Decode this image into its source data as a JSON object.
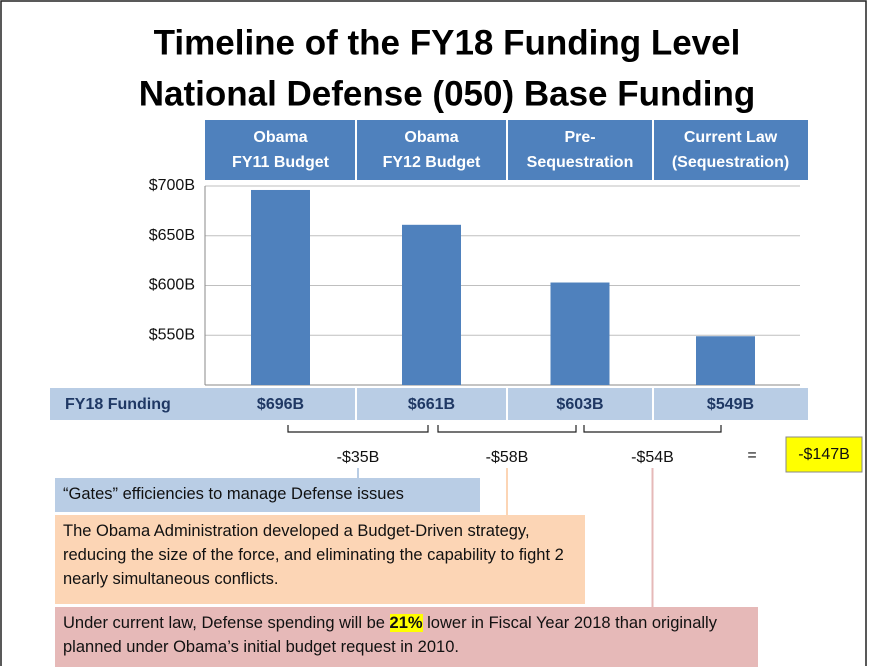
{
  "title": [
    "Timeline of the FY18 Funding Level",
    "National Defense (050) Base Funding"
  ],
  "chart_data": {
    "type": "bar",
    "categories": [
      [
        "Obama",
        "FY11 Budget"
      ],
      [
        "Obama",
        "FY12 Budget"
      ],
      [
        "Pre-",
        "Sequestration"
      ],
      [
        "Current Law",
        "(Sequestration)"
      ]
    ],
    "row_label": "FY18 Funding",
    "values": [
      696,
      661,
      603,
      549
    ],
    "value_labels": [
      "$696B",
      "$661B",
      "$603B",
      "$549B"
    ],
    "color": "#4f81bd",
    "ylim": [
      500,
      700
    ],
    "yticks": [
      {
        "value": 550,
        "label": "$550B"
      },
      {
        "value": 600,
        "label": "$600B"
      },
      {
        "value": 650,
        "label": "$650B"
      },
      {
        "value": 700,
        "label": "$700B"
      }
    ],
    "grid": true,
    "differences": {
      "values": [
        -35,
        -58,
        -54
      ],
      "value_labels": [
        "-$35B",
        "-$58B",
        "-$54B"
      ]
    },
    "equals": "=",
    "total": {
      "value": -147,
      "label": "-$147B"
    }
  },
  "notes": [
    [
      "“Gates” efficiencies to manage Defense issues"
    ],
    [
      "The Obama Administration developed a Budget-Driven strategy, reducing the size of the force, and eliminating the capability to fight 2 nearly simultaneous conflicts."
    ],
    [
      "Under current law, Defense spending will be ",
      "21%",
      " lower in Fiscal Year 2018 than originally planned under Obama’s initial budget request in 2010."
    ]
  ]
}
